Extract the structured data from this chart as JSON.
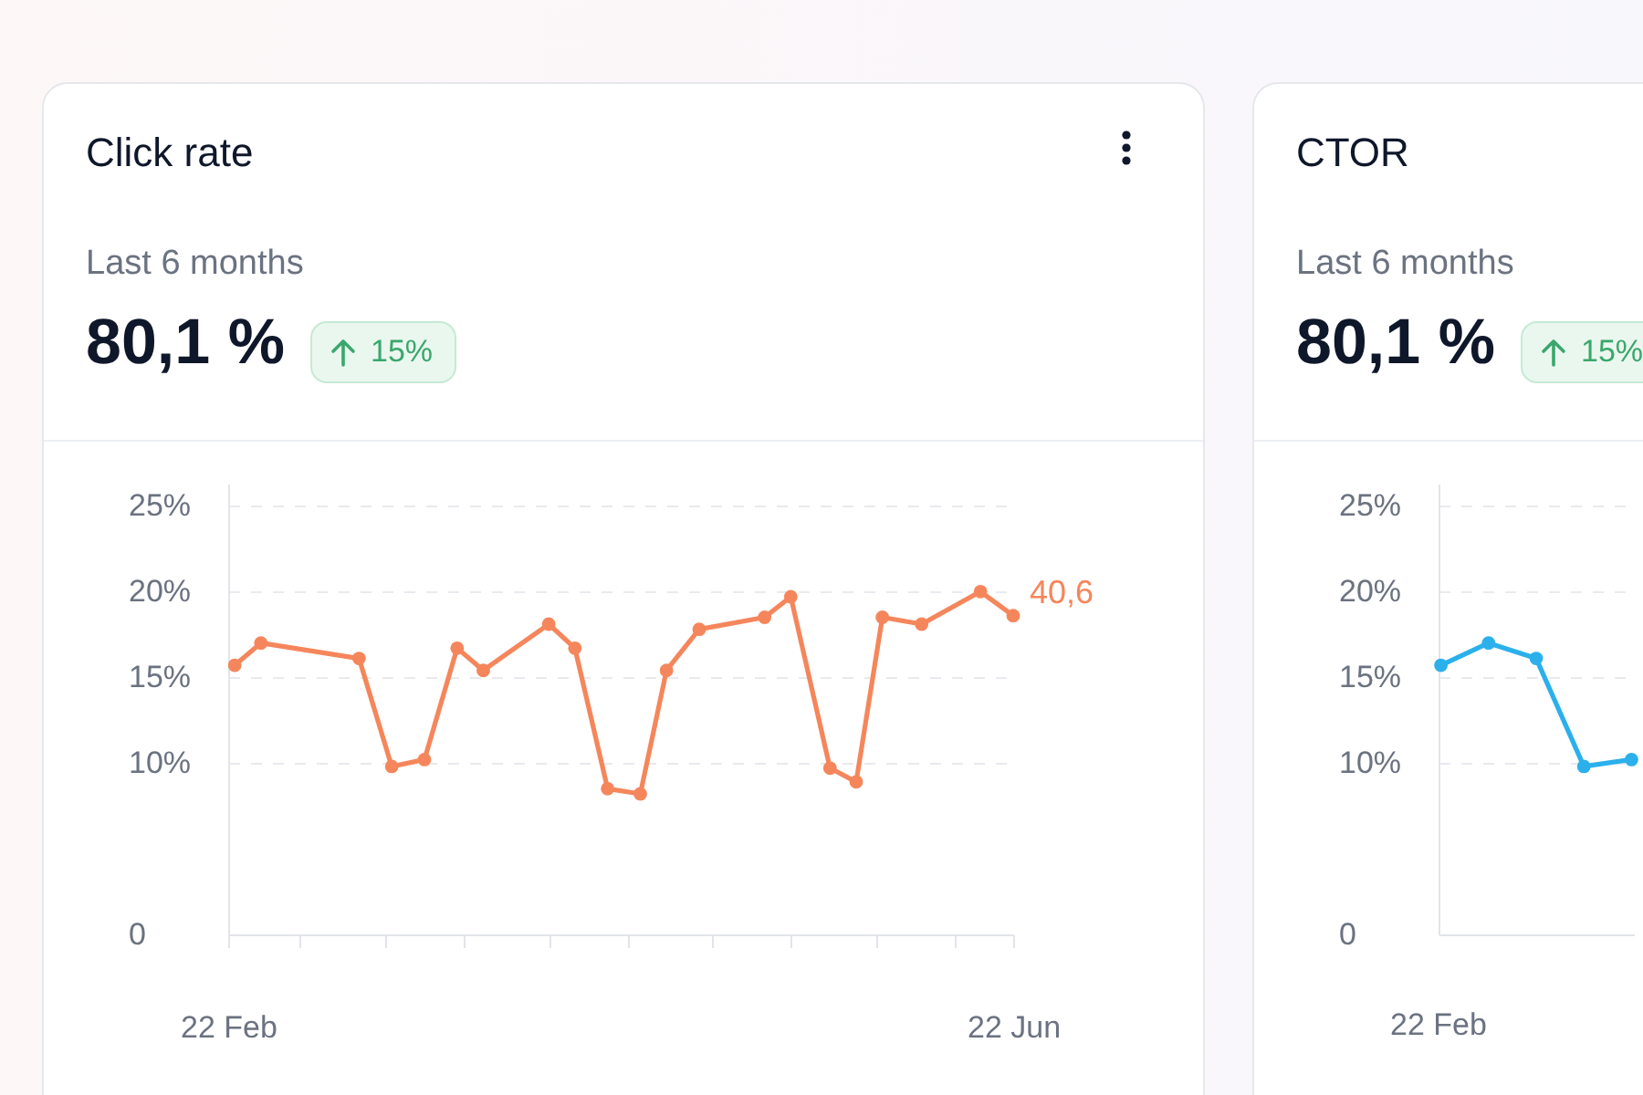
{
  "chart_data": [
    {
      "type": "line",
      "title": "Click rate",
      "subtitle": "Last 6 months",
      "annotations": [
        "80,1 %",
        "15%",
        {
          "text": "40,6",
          "x": "--06-22",
          "y": 18.6
        }
      ],
      "x": [
        "--02-23",
        "--02-27",
        "--03-14",
        "--03-19",
        "--03-24",
        "--03-29",
        "--04-02",
        "--04-12",
        "--04-16",
        "--04-21",
        "--04-26",
        "--04-30",
        "--05-05",
        "--05-15",
        "--05-19",
        "--05-25",
        "--05-29",
        "--06-02",
        "--06-08",
        "--06-17",
        "--06-22"
      ],
      "values": [
        15.7,
        17.0,
        16.1,
        9.8,
        10.2,
        16.7,
        15.4,
        18.1,
        16.7,
        8.5,
        8.2,
        15.4,
        17.8,
        18.5,
        19.7,
        9.7,
        8.9,
        18.5,
        18.1,
        20.0,
        18.6
      ],
      "color": "#f5865c",
      "xlim": [
        "--02-22",
        "--06-22"
      ],
      "xticks": [
        {
          "value": "--02-22",
          "label": "22 Feb"
        },
        {
          "value": "--03-05",
          "label": null
        },
        {
          "value": "--03-18",
          "label": null
        },
        {
          "value": "--03-30",
          "label": null
        },
        {
          "value": "--04-12",
          "label": null
        },
        {
          "value": "--04-24",
          "label": null
        },
        {
          "value": "--05-07",
          "label": null
        },
        {
          "value": "--05-19",
          "label": null
        },
        {
          "value": "--06-01",
          "label": null
        },
        {
          "value": "--06-13",
          "label": null
        },
        {
          "value": "--06-22",
          "label": "22 Jun"
        }
      ],
      "ylim": [
        0,
        26.3
      ],
      "yticks": [
        0,
        {
          "value": 10,
          "label": "10%"
        },
        {
          "value": 15,
          "label": "15%"
        },
        {
          "value": 20,
          "label": "20%"
        },
        {
          "value": 25,
          "label": "25%"
        }
      ],
      "grid": "y",
      "marker": "circle"
    },
    {
      "type": "line",
      "title": "CTOR",
      "subtitle": "Last 6 months",
      "annotations": [
        "80,1 %",
        "15%",
        "22 Feb"
      ],
      "categories": [
        null,
        null,
        null,
        null,
        null
      ],
      "values": [
        15.7,
        17.0,
        16.1,
        9.8,
        10.2
      ],
      "color": "#2bb0ec",
      "ylim": [
        0,
        26.3
      ],
      "yticks": [
        0,
        {
          "value": 10,
          "label": "10%"
        },
        {
          "value": 15,
          "label": "15%"
        },
        {
          "value": 20,
          "label": "20%"
        },
        {
          "value": 25,
          "label": "25%"
        }
      ],
      "grid": "y",
      "marker": "circle"
    }
  ]
}
